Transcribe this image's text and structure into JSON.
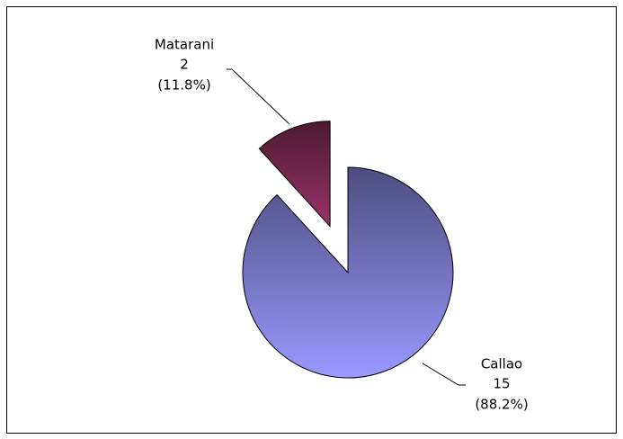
{
  "chart_data": {
    "type": "pie",
    "categories": [
      "Callao",
      "Matarani"
    ],
    "values": [
      15,
      2
    ],
    "percent_labels": [
      "(88.2%)",
      "(11.8%)"
    ],
    "colors": [
      "#9999ff",
      "#993366"
    ],
    "explode": [
      false,
      true
    ]
  }
}
